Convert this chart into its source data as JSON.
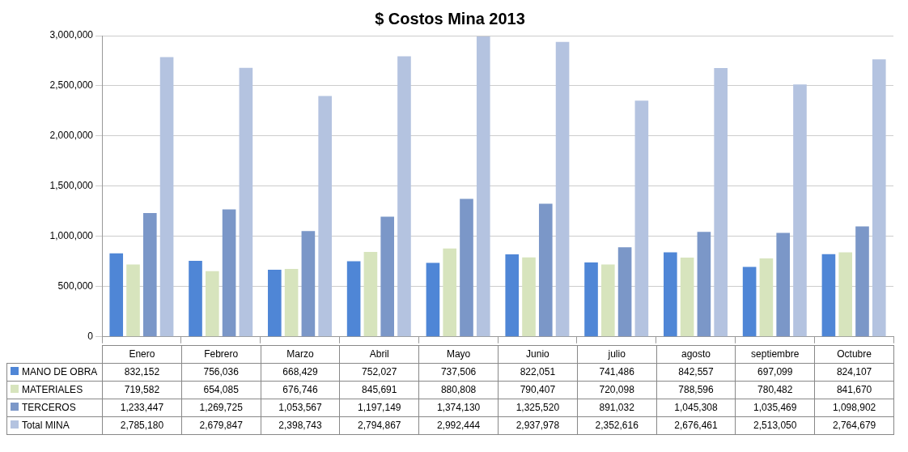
{
  "chart_data": {
    "type": "bar",
    "title": "$ Costos Mina 2013",
    "categories": [
      "Enero",
      "Febrero",
      "Marzo",
      "Abril",
      "Mayo",
      "Junio",
      "julio",
      "agosto",
      "septiembre",
      "Octubre"
    ],
    "series": [
      {
        "name": "MANO DE OBRA",
        "color": "#4f86d6",
        "values": [
          832152,
          756036,
          668429,
          752027,
          737506,
          822051,
          741486,
          842557,
          697099,
          824107
        ],
        "value_labels": [
          "832,152",
          "756,036",
          "668,429",
          "752,027",
          "737,506",
          "822,051",
          "741,486",
          "842,557",
          "697,099",
          "824,107"
        ]
      },
      {
        "name": "MATERIALES",
        "color": "#d7e4bd",
        "values": [
          719582,
          654085,
          676746,
          845691,
          880808,
          790407,
          720098,
          788596,
          780482,
          841670
        ],
        "value_labels": [
          "719,582",
          "654,085",
          "676,746",
          "845,691",
          "880,808",
          "790,407",
          "720,098",
          "788,596",
          "780,482",
          "841,670"
        ]
      },
      {
        "name": "TERCEROS",
        "color": "#7b97c8",
        "values": [
          1233447,
          1269725,
          1053567,
          1197149,
          1374130,
          1325520,
          891032,
          1045308,
          1035469,
          1098902
        ],
        "value_labels": [
          "1,233,447",
          "1,269,725",
          "1,053,567",
          "1,197,149",
          "1,374,130",
          "1,325,520",
          "891,032",
          "1,045,308",
          "1,035,469",
          "1,098,902"
        ]
      },
      {
        "name": "Total MINA",
        "color": "#b4c3e0",
        "values": [
          2785180,
          2679847,
          2398743,
          2794867,
          2992444,
          2937978,
          2352616,
          2676461,
          2513050,
          2764679
        ],
        "value_labels": [
          "2,785,180",
          "2,679,847",
          "2,398,743",
          "2,794,867",
          "2,992,444",
          "2,937,978",
          "2,352,616",
          "2,676,461",
          "2,513,050",
          "2,764,679"
        ]
      }
    ],
    "ylim": [
      0,
      3000000
    ],
    "yticks": [
      {
        "value": 0,
        "label": "0"
      },
      {
        "value": 500000,
        "label": "500,000"
      },
      {
        "value": 1000000,
        "label": "1,000,000"
      },
      {
        "value": 1500000,
        "label": "1,500,000"
      },
      {
        "value": 2000000,
        "label": "2,000,000"
      },
      {
        "value": 2500000,
        "label": "2,500,000"
      },
      {
        "value": 3000000,
        "label": "3,000,000"
      }
    ],
    "grid": "y",
    "legend": "bottom"
  }
}
